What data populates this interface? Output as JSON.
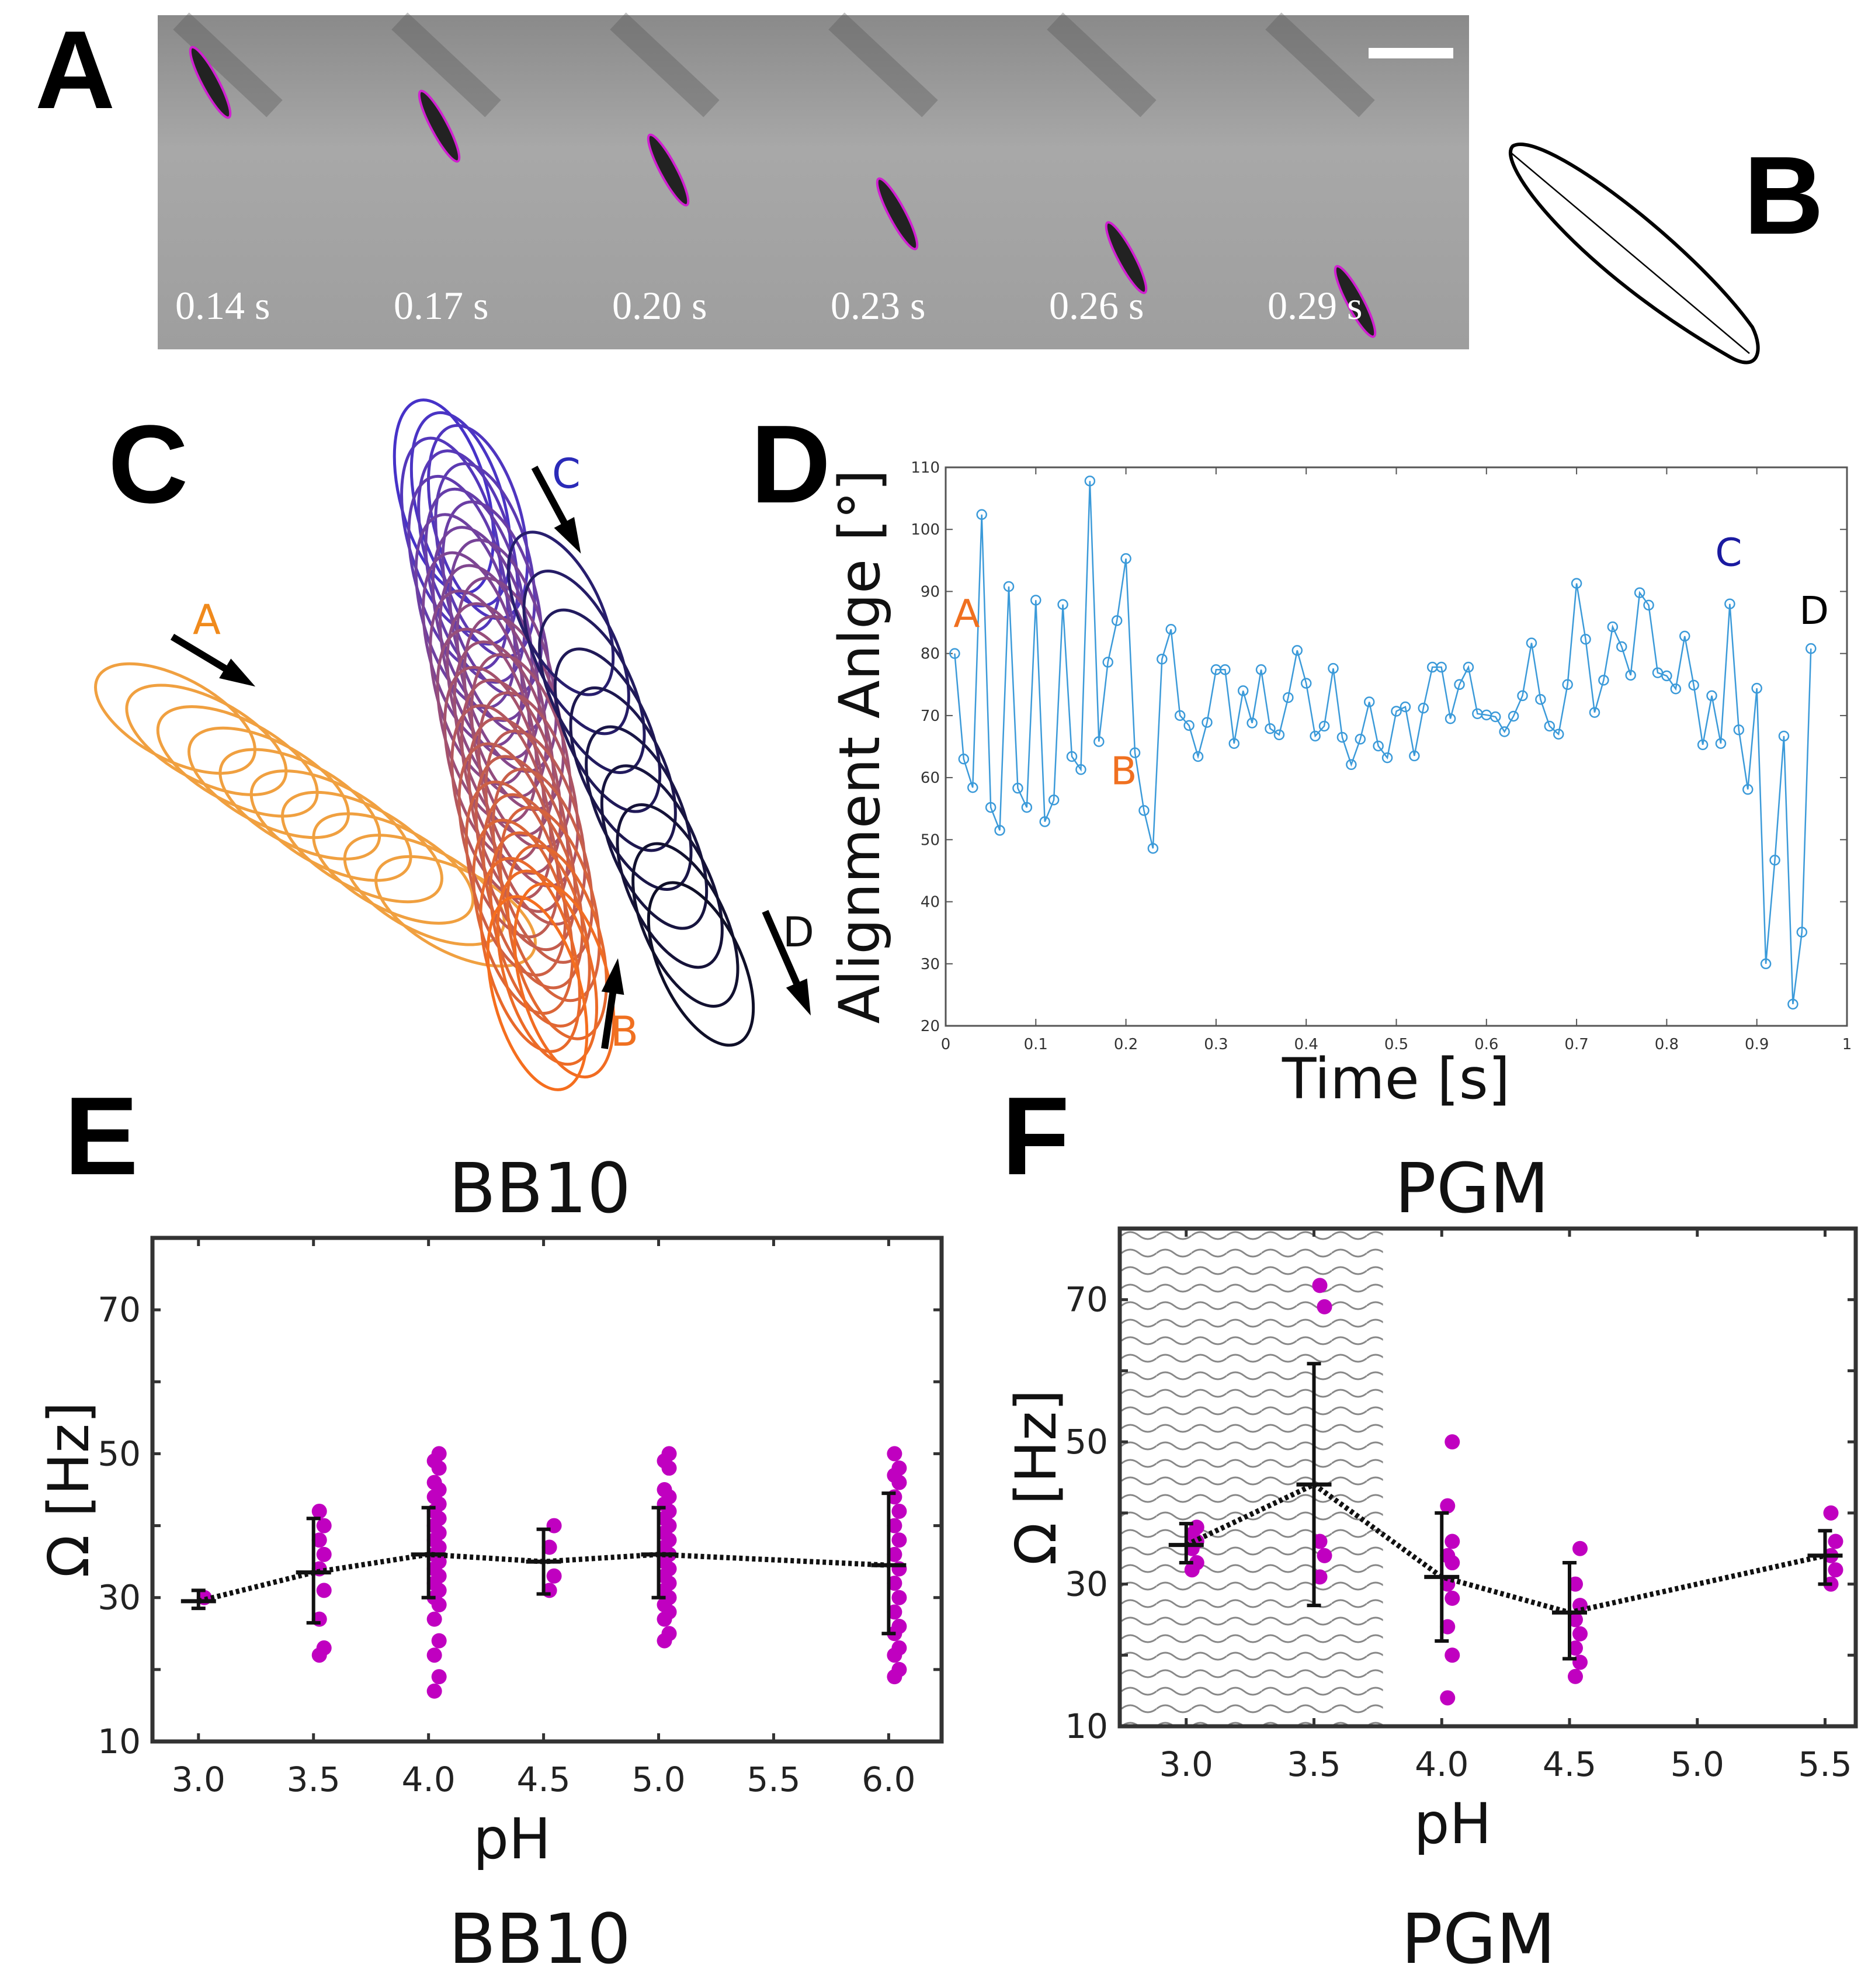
{
  "panel_letters": {
    "a": "A",
    "b": "B",
    "c": "C",
    "d": "D",
    "e": "E",
    "f": "F"
  },
  "panel_a": {
    "frames": [
      "0.14 s",
      "0.17 s",
      "0.20 s",
      "0.23 s",
      "0.26 s",
      "0.29 s"
    ]
  },
  "panel_c": {
    "labels": {
      "a": "A",
      "b": "B",
      "c": "C",
      "d": "D"
    },
    "colors": {
      "a": "#f08a1c",
      "b": "#f07020",
      "c": "#2a2ab8",
      "d": "#111"
    }
  },
  "chart_data": [
    {
      "type": "line",
      "title": "",
      "xlabel": "Time [s]",
      "ylabel": "Alignment Anlge [°]",
      "xlim": [
        0,
        1
      ],
      "ylim": [
        20,
        110
      ],
      "xticks": [
        "0",
        "0.1",
        "0.2",
        "0.3",
        "0.4",
        "0.5",
        "0.6",
        "0.7",
        "0.8",
        "0.9",
        "1"
      ],
      "yticks": [
        "20",
        "30",
        "40",
        "50",
        "60",
        "70",
        "80",
        "90",
        "100",
        "110"
      ],
      "color": "#3b9ad9",
      "annotations": [
        {
          "text": "A",
          "x": 0.01,
          "y": 80,
          "color": "#f07020"
        },
        {
          "text": "B",
          "x": 0.17,
          "y": 66,
          "color": "#f07020"
        },
        {
          "text": "C",
          "x": 0.87,
          "y": 88,
          "color": "#1a1aa0"
        },
        {
          "text": "D",
          "x": 0.96,
          "y": 81,
          "color": "#000000"
        }
      ],
      "x": [
        0.01,
        0.02,
        0.03,
        0.04,
        0.05,
        0.06,
        0.07,
        0.08,
        0.09,
        0.1,
        0.11,
        0.12,
        0.13,
        0.14,
        0.15,
        0.16,
        0.17,
        0.18,
        0.19,
        0.2,
        0.21,
        0.22,
        0.23,
        0.24,
        0.25,
        0.26,
        0.27,
        0.28,
        0.29,
        0.3,
        0.31,
        0.32,
        0.33,
        0.34,
        0.35,
        0.36,
        0.37,
        0.38,
        0.39,
        0.4,
        0.41,
        0.42,
        0.43,
        0.44,
        0.45,
        0.46,
        0.47,
        0.48,
        0.49,
        0.5,
        0.51,
        0.52,
        0.53,
        0.54,
        0.55,
        0.56,
        0.57,
        0.58,
        0.59,
        0.6,
        0.61,
        0.62,
        0.63,
        0.64,
        0.65,
        0.66,
        0.67,
        0.68,
        0.69,
        0.7,
        0.71,
        0.72,
        0.73,
        0.74,
        0.75,
        0.76,
        0.77,
        0.78,
        0.79,
        0.8,
        0.81,
        0.82,
        0.83,
        0.84,
        0.85,
        0.86,
        0.87,
        0.88,
        0.89,
        0.9,
        0.91,
        0.92,
        0.93,
        0.94,
        0.95,
        0.96
      ],
      "y": [
        80,
        63,
        58.4,
        102.4,
        55.2,
        51.5,
        90.8,
        58.3,
        55.2,
        88.6,
        52.9,
        56.4,
        87.9,
        63.4,
        61.3,
        107.8,
        65.8,
        78.6,
        85.3,
        95.3,
        64,
        54.7,
        48.6,
        79.1,
        83.9,
        70,
        68.4,
        63.4,
        68.9,
        77.4,
        77.4,
        65.5,
        74,
        68.8,
        77.4,
        67.9,
        66.9,
        72.9,
        80.5,
        75.2,
        66.7,
        68.3,
        77.6,
        66.5,
        62.1,
        66.2,
        72.2,
        65.1,
        63.2,
        70.7,
        71.4,
        63.5,
        71.2,
        77.8,
        77.8,
        69.5,
        75,
        77.8,
        70.3,
        70.1,
        69.8,
        67.4,
        69.9,
        73.2,
        81.7,
        72.6,
        68.3,
        67,
        75,
        91.3,
        82.3,
        70.5,
        75.7,
        84.3,
        81.1,
        76.5,
        89.8,
        87.8,
        76.9,
        76.4,
        74.3,
        82.8,
        74.9,
        65.3,
        73.2,
        65.5,
        88,
        67.7,
        58.1,
        74.4,
        30,
        46.7,
        66.7,
        23.5,
        35.1,
        80.8
      ]
    },
    {
      "type": "scatter",
      "title": "BB10",
      "caption": "BB10",
      "xlabel": "pH",
      "ylabel": "Ω [Hz]",
      "xlim": [
        2.8,
        6.23
      ],
      "ylim": [
        10,
        80
      ],
      "xticks": [
        "3.0",
        "3.5",
        "4.0",
        "4.5",
        "5.0",
        "5.5",
        "6.0"
      ],
      "yticks": [
        "10",
        "30",
        "50",
        "70"
      ],
      "point_color": "#c000c0",
      "groups": [
        {
          "x": 3.0,
          "mean": 29.5,
          "err": [
            28.5,
            31
          ],
          "points": [
            30
          ]
        },
        {
          "x": 3.5,
          "mean": 33.5,
          "err": [
            26.5,
            41
          ],
          "points": [
            22,
            23,
            27,
            31,
            34,
            36,
            38,
            40,
            42
          ]
        },
        {
          "x": 4.0,
          "mean": 36,
          "err": [
            30,
            42.5
          ],
          "points": [
            17,
            19,
            22,
            24,
            27,
            29,
            30,
            31,
            32,
            33,
            34,
            35,
            36,
            37,
            38,
            39,
            40,
            41,
            42,
            43,
            44,
            45,
            46,
            48,
            49,
            50
          ]
        },
        {
          "x": 4.5,
          "mean": 35,
          "err": [
            30.5,
            39.5
          ],
          "points": [
            31,
            33,
            37,
            40
          ]
        },
        {
          "x": 5.0,
          "mean": 36,
          "err": [
            30,
            42.5
          ],
          "points": [
            24,
            25,
            27,
            28,
            29,
            30,
            31,
            32,
            33,
            34,
            35,
            36,
            37,
            38,
            39,
            40,
            41,
            42,
            43,
            44,
            45,
            48,
            49,
            50
          ]
        },
        {
          "x": 6.0,
          "mean": 34.5,
          "err": [
            25,
            44.5
          ],
          "points": [
            19,
            20,
            22,
            23,
            25,
            26,
            28,
            30,
            32,
            34,
            36,
            38,
            40,
            42,
            44,
            46,
            47,
            48,
            50
          ]
        }
      ]
    },
    {
      "type": "scatter",
      "title": "PGM",
      "caption": "PGM",
      "xlabel": "pH",
      "ylabel": "Ω [Hz]",
      "xlim": [
        2.74,
        5.62
      ],
      "ylim": [
        10,
        80
      ],
      "hatched_region_x": [
        2.74,
        3.77
      ],
      "xticks": [
        "3.0",
        "3.5",
        "4.0",
        "4.5",
        "5.0",
        "5.5"
      ],
      "yticks": [
        "10",
        "30",
        "50",
        "70"
      ],
      "point_color": "#c000c0",
      "groups": [
        {
          "x": 3.0,
          "mean": 35.5,
          "err": [
            33,
            38.5
          ],
          "points": [
            32,
            33,
            35,
            36,
            37,
            38
          ]
        },
        {
          "x": 3.5,
          "mean": 44,
          "err": [
            27,
            61
          ],
          "points": [
            31,
            34,
            36,
            69,
            72
          ]
        },
        {
          "x": 4.0,
          "mean": 31,
          "err": [
            22,
            40
          ],
          "points": [
            14,
            20,
            24,
            28,
            30,
            33,
            34,
            36,
            41,
            50
          ]
        },
        {
          "x": 4.5,
          "mean": 26,
          "err": [
            19.5,
            33
          ],
          "points": [
            17,
            19,
            21,
            23,
            25,
            27,
            30,
            35
          ]
        },
        {
          "x": 5.5,
          "mean": 34,
          "err": [
            30,
            37.5
          ],
          "points": [
            30,
            32,
            34,
            36,
            40
          ]
        }
      ]
    }
  ]
}
